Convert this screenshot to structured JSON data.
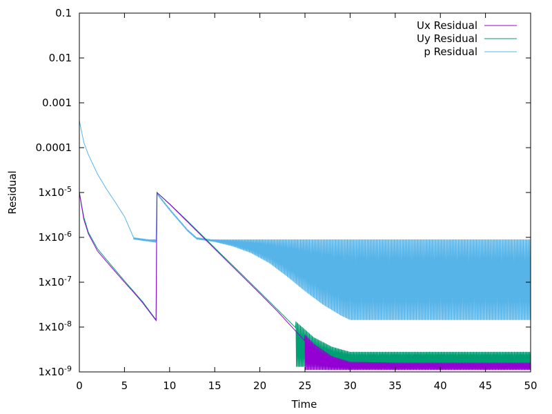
{
  "chart_data": {
    "type": "line",
    "title": "",
    "xlabel": "Time",
    "ylabel": "Residual",
    "xlim": [
      0,
      50
    ],
    "ylim": [
      1e-09,
      0.1
    ],
    "yscale": "log",
    "grid": false,
    "legend_position": "top-right",
    "x_ticks": [
      {
        "value": 0,
        "label": "0"
      },
      {
        "value": 5,
        "label": "5"
      },
      {
        "value": 10,
        "label": "10"
      },
      {
        "value": 15,
        "label": "15"
      },
      {
        "value": 20,
        "label": "20"
      },
      {
        "value": 25,
        "label": "25"
      },
      {
        "value": 30,
        "label": "30"
      },
      {
        "value": 35,
        "label": "35"
      },
      {
        "value": 40,
        "label": "40"
      },
      {
        "value": 45,
        "label": "45"
      },
      {
        "value": 50,
        "label": "50"
      }
    ],
    "y_ticks": [
      {
        "value": 1e-09,
        "label": "1x10-9",
        "mantissa": "1x10",
        "exp": "-9"
      },
      {
        "value": 1e-08,
        "label": "1x10-8",
        "mantissa": "1x10",
        "exp": "-8"
      },
      {
        "value": 1e-07,
        "label": "1x10-7",
        "mantissa": "1x10",
        "exp": "-7"
      },
      {
        "value": 1e-06,
        "label": "1x10-6",
        "mantissa": "1x10",
        "exp": "-6"
      },
      {
        "value": 1e-05,
        "label": "1x10-5",
        "mantissa": "1x10",
        "exp": "-5"
      },
      {
        "value": 0.0001,
        "label": "0.0001"
      },
      {
        "value": 0.001,
        "label": "0.001"
      },
      {
        "value": 0.01,
        "label": "0.01"
      },
      {
        "value": 0.1,
        "label": "0.1"
      }
    ],
    "series": [
      {
        "name": "Ux Residual",
        "color": "#9400d3",
        "points": [
          [
            0,
            1e-05
          ],
          [
            0.5,
            2.5e-06
          ],
          [
            1,
            1.2e-06
          ],
          [
            2,
            5e-07
          ],
          [
            3,
            2.9e-07
          ],
          [
            4,
            1.7e-07
          ],
          [
            5,
            1e-07
          ],
          [
            6,
            6e-08
          ],
          [
            7,
            3.5e-08
          ],
          [
            8.5,
            1.4e-08
          ],
          [
            8.6,
            1e-05
          ],
          [
            10,
            5.5e-06
          ],
          [
            12,
            2.2e-06
          ],
          [
            14,
            8.8e-07
          ],
          [
            16,
            3.5e-07
          ],
          [
            18,
            1.4e-07
          ],
          [
            20,
            5.6e-08
          ],
          [
            22,
            2.2e-08
          ],
          [
            24,
            8e-09
          ],
          [
            26,
            3e-09
          ],
          [
            28,
            1.6e-09
          ],
          [
            30,
            1.2e-09
          ],
          [
            35,
            1.15e-09
          ],
          [
            40,
            1.15e-09
          ],
          [
            50,
            1.15e-09
          ]
        ],
        "oscillation": {
          "from": 25,
          "to": 50,
          "low": 1.1e-09,
          "high": 1.6e-09
        }
      },
      {
        "name": "Uy Residual",
        "color": "#009e73",
        "points": [
          [
            0,
            1e-05
          ],
          [
            0.5,
            2.8e-06
          ],
          [
            1,
            1.3e-06
          ],
          [
            2,
            5.6e-07
          ],
          [
            3,
            3.2e-07
          ],
          [
            4,
            1.85e-07
          ],
          [
            5,
            1.07e-07
          ],
          [
            6,
            6.3e-08
          ],
          [
            7,
            3.7e-08
          ],
          [
            8.5,
            1.45e-08
          ],
          [
            8.6,
            1e-05
          ],
          [
            10,
            5.6e-06
          ],
          [
            12,
            2.3e-06
          ],
          [
            14,
            9.2e-07
          ],
          [
            16,
            3.7e-07
          ],
          [
            18,
            1.5e-07
          ],
          [
            20,
            6e-08
          ],
          [
            22,
            2.4e-08
          ],
          [
            24,
            9.5e-09
          ],
          [
            26,
            4.2e-09
          ],
          [
            28,
            2.6e-09
          ],
          [
            30,
            2e-09
          ],
          [
            50,
            2e-09
          ]
        ],
        "oscillation": {
          "from": 24,
          "to": 50,
          "low": 1.3e-09,
          "high": 2.1e-09
        }
      },
      {
        "name": "p Residual",
        "color": "#56b4e9",
        "points": [
          [
            0,
            0.0004
          ],
          [
            0.5,
            0.00013
          ],
          [
            1,
            7e-05
          ],
          [
            2,
            2.6e-05
          ],
          [
            3,
            1.2e-05
          ],
          [
            4,
            6e-06
          ],
          [
            5,
            2.9e-06
          ],
          [
            6,
            1e-06
          ],
          [
            8.5,
            8.5e-07
          ],
          [
            8.6,
            1e-05
          ],
          [
            10,
            4.4e-06
          ],
          [
            12,
            1.5e-06
          ],
          [
            13,
            1e-06
          ],
          [
            15,
            8.8e-07
          ],
          [
            17,
            7e-07
          ],
          [
            19,
            5e-07
          ],
          [
            21,
            3e-07
          ],
          [
            23,
            1.5e-07
          ],
          [
            25,
            7e-08
          ],
          [
            27,
            3.5e-08
          ],
          [
            29,
            2e-08
          ],
          [
            30,
            1.6e-08
          ],
          [
            50,
            1.6e-08
          ]
        ],
        "oscillation": {
          "from": 6,
          "to": 50,
          "low": 1.4e-08,
          "high": 9e-07
        }
      }
    ]
  }
}
